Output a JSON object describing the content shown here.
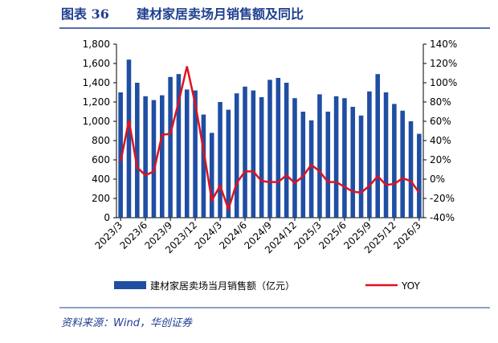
{
  "chart_data": {
    "type": "bar_line",
    "figure_label": "图表 36",
    "title": "建材家居卖场月销售额及同比",
    "source": "资料来源：Wind，华创证券",
    "categories": [
      "2023/3",
      null,
      null,
      "2023/6",
      null,
      null,
      "2023/9",
      null,
      null,
      "2023/12",
      null,
      null,
      "2024/3",
      null,
      null,
      "2024/6",
      null,
      null,
      "2024/9",
      null,
      null,
      "2024/12",
      null,
      null,
      "2025/3",
      null,
      null,
      "2025/6",
      null,
      null,
      "2025/9",
      null,
      null,
      "2025/12",
      null,
      null,
      "2026/3"
    ],
    "series": [
      {
        "name": "建材家居卖场当月销售额（亿元）",
        "type": "bar",
        "color": "#1f4ea3",
        "values": [
          1300,
          1640,
          1400,
          1260,
          1220,
          1270,
          1460,
          1490,
          1330,
          1320,
          1070,
          880,
          1200,
          1120,
          1290,
          1360,
          1320,
          1250,
          1430,
          1450,
          1400,
          1240,
          1100,
          1010,
          1280,
          1100,
          1260,
          1240,
          1150,
          1060,
          1310,
          1490,
          1300,
          1180,
          1110,
          1000,
          870
        ]
      },
      {
        "name": "YOY",
        "type": "line",
        "axis": "y2",
        "color": "#e0121d",
        "values": [
          18,
          61,
          12,
          4,
          8,
          46,
          47,
          80,
          117,
          78,
          30,
          -22,
          -7,
          -31,
          -4,
          8,
          8,
          -2,
          -3,
          -3,
          4,
          -4,
          3,
          15,
          8,
          -3,
          -3,
          -8,
          -13,
          -14,
          -7,
          3,
          -6,
          -5,
          1,
          -2,
          -14
        ]
      }
    ],
    "ylim": [
      0,
      1800
    ],
    "yticks": [
      0,
      200,
      400,
      600,
      800,
      {
        "value": 1000,
        "label": "1,000"
      },
      {
        "value": 1200,
        "label": "1,200"
      },
      {
        "value": 1400,
        "label": "1,400"
      },
      {
        "value": 1600,
        "label": "1,600"
      },
      {
        "value": 1800,
        "label": "1,800"
      }
    ],
    "y2lim": [
      -40,
      140
    ],
    "y2ticks": [
      {
        "value": -40,
        "label": "-40%"
      },
      {
        "value": -20,
        "label": "-20%"
      },
      {
        "value": 0,
        "label": "0%"
      },
      {
        "value": 20,
        "label": "20%"
      },
      {
        "value": 40,
        "label": "40%"
      },
      {
        "value": 60,
        "label": "60%"
      },
      {
        "value": 80,
        "label": "80%"
      },
      {
        "value": 100,
        "label": "100%"
      },
      {
        "value": 120,
        "label": "120%"
      },
      {
        "value": 140,
        "label": "140%"
      }
    ]
  }
}
